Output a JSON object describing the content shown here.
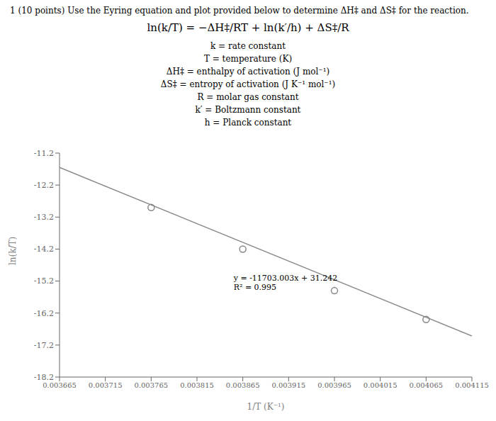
{
  "chart_data": {
    "type": "scatter",
    "title": "1 (10 points) Use the Eyring equation and plot provided below to determine ΔH‡ and ΔS‡ for the reaction.",
    "subtitle": "ln(k/T) = −ΔH‡/RT + ln(k′/h) + ΔS‡/R",
    "xlabel": "1/T (K⁻¹)",
    "ylabel": "ln(k/T)",
    "xlim": [
      0.003665,
      0.004115
    ],
    "ylim": [
      -18.2,
      -11.2
    ],
    "xticks": [
      0.003665,
      0.003715,
      0.003765,
      0.003815,
      0.003865,
      0.003915,
      0.003965,
      0.004015,
      0.004065,
      0.004115
    ],
    "yticks": [
      -18.2,
      -17.2,
      -16.2,
      -15.2,
      -14.2,
      -13.2,
      -12.2,
      -11.2
    ],
    "grid": false,
    "series": [
      {
        "type": "scatter",
        "marker": "circle",
        "color": "#888888",
        "x": [
          0.003765,
          0.003865,
          0.003965,
          0.004065
        ],
        "values": [
          -12.9,
          -14.2,
          -15.5,
          -16.4
        ]
      },
      {
        "type": "line",
        "color": "#888888",
        "x": [
          0.003665,
          0.004115
        ],
        "values": [
          -11.649506,
          -16.91585735
        ]
      }
    ],
    "annotations": [
      {
        "text": "k = rate constant"
      },
      {
        "text": "T = temperature (K)"
      },
      {
        "text": "ΔH‡ = enthalpy of activation (J mol⁻¹)"
      },
      {
        "text": "ΔS‡ = entropy of activation (J K⁻¹ mol⁻¹)"
      },
      {
        "text": "R = molar gas constant"
      },
      {
        "text": "k′ = Boltzmann constant"
      },
      {
        "text": "h = Planck constant"
      },
      {
        "text": "y = -11703.003x + 31.242\nR² = 0.995",
        "x": 0.003855,
        "y": -15.25
      }
    ]
  }
}
